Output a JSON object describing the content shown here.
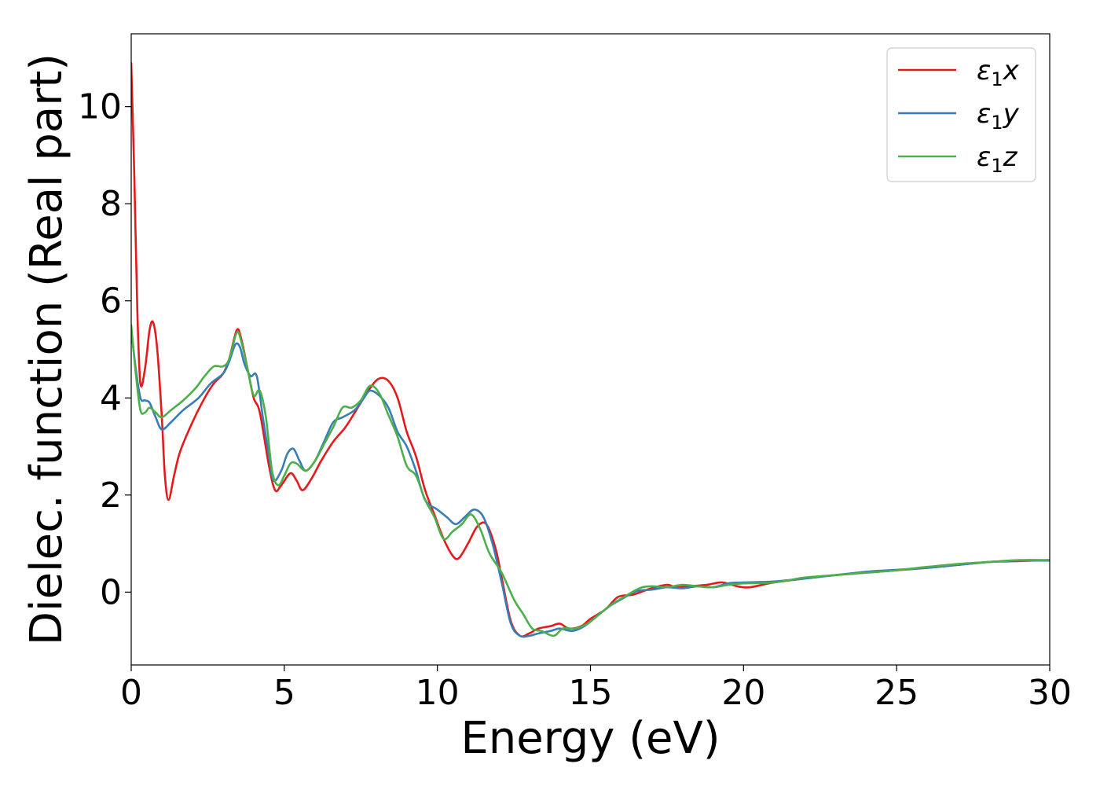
{
  "chart_data": {
    "type": "line",
    "title": "",
    "xlabel": "Energy (eV)",
    "ylabel": "Dielec. function (Real part)",
    "xlim": [
      0,
      30
    ],
    "ylim": [
      -1.5,
      11.5
    ],
    "xticks": [
      0,
      5,
      10,
      15,
      20,
      25,
      30
    ],
    "xtick_labels": [
      "0",
      "5",
      "10",
      "15",
      "20",
      "25",
      "30"
    ],
    "yticks": [
      0,
      2,
      4,
      6,
      8,
      10
    ],
    "ytick_labels": [
      "0",
      "2",
      "4",
      "6",
      "8",
      "10"
    ],
    "grid": false,
    "legend_position": "top-right",
    "series": [
      {
        "name": "ε1x",
        "legend_base": "ε",
        "legend_sub": "1",
        "legend_var": "x",
        "color": "#e41a1c",
        "points": [
          [
            0.0,
            10.9
          ],
          [
            0.1,
            8.6
          ],
          [
            0.2,
            5.8
          ],
          [
            0.3,
            4.3
          ],
          [
            0.45,
            4.6
          ],
          [
            0.6,
            5.4
          ],
          [
            0.72,
            5.55
          ],
          [
            0.85,
            5.0
          ],
          [
            1.0,
            3.6
          ],
          [
            1.1,
            2.4
          ],
          [
            1.22,
            1.9
          ],
          [
            1.4,
            2.4
          ],
          [
            1.6,
            2.9
          ],
          [
            2.0,
            3.5
          ],
          [
            2.4,
            4.0
          ],
          [
            2.7,
            4.3
          ],
          [
            3.0,
            4.5
          ],
          [
            3.2,
            4.8
          ],
          [
            3.45,
            5.4
          ],
          [
            3.6,
            5.2
          ],
          [
            3.8,
            4.6
          ],
          [
            4.0,
            4.0
          ],
          [
            4.2,
            3.7
          ],
          [
            4.5,
            2.6
          ],
          [
            4.7,
            2.1
          ],
          [
            4.9,
            2.2
          ],
          [
            5.2,
            2.45
          ],
          [
            5.4,
            2.3
          ],
          [
            5.6,
            2.1
          ],
          [
            5.9,
            2.35
          ],
          [
            6.2,
            2.7
          ],
          [
            6.6,
            3.1
          ],
          [
            7.0,
            3.4
          ],
          [
            7.4,
            3.8
          ],
          [
            7.8,
            4.2
          ],
          [
            8.1,
            4.4
          ],
          [
            8.4,
            4.35
          ],
          [
            8.7,
            4.0
          ],
          [
            9.0,
            3.3
          ],
          [
            9.3,
            2.8
          ],
          [
            9.6,
            2.1
          ],
          [
            9.9,
            1.6
          ],
          [
            10.2,
            1.1
          ],
          [
            10.5,
            0.75
          ],
          [
            10.7,
            0.7
          ],
          [
            11.0,
            1.0
          ],
          [
            11.3,
            1.35
          ],
          [
            11.6,
            1.4
          ],
          [
            11.9,
            0.9
          ],
          [
            12.1,
            0.3
          ],
          [
            12.4,
            -0.6
          ],
          [
            12.7,
            -0.9
          ],
          [
            13.0,
            -0.85
          ],
          [
            13.3,
            -0.75
          ],
          [
            13.7,
            -0.7
          ],
          [
            14.0,
            -0.65
          ],
          [
            14.3,
            -0.75
          ],
          [
            14.7,
            -0.7
          ],
          [
            15.0,
            -0.55
          ],
          [
            15.5,
            -0.35
          ],
          [
            15.9,
            -0.1
          ],
          [
            16.4,
            -0.05
          ],
          [
            17.0,
            0.08
          ],
          [
            17.5,
            0.15
          ],
          [
            17.8,
            0.1
          ],
          [
            18.2,
            0.12
          ],
          [
            18.8,
            0.15
          ],
          [
            19.3,
            0.2
          ],
          [
            19.8,
            0.12
          ],
          [
            20.2,
            0.1
          ],
          [
            21.0,
            0.2
          ],
          [
            22.0,
            0.28
          ],
          [
            23.0,
            0.35
          ],
          [
            24.0,
            0.4
          ],
          [
            25.0,
            0.45
          ],
          [
            26.0,
            0.5
          ],
          [
            27.0,
            0.56
          ],
          [
            28.0,
            0.62
          ],
          [
            29.0,
            0.64
          ],
          [
            30.0,
            0.66
          ]
        ]
      },
      {
        "name": "ε1y",
        "legend_base": "ε",
        "legend_sub": "1",
        "legend_var": "y",
        "color": "#377eb8",
        "points": [
          [
            0.0,
            5.4
          ],
          [
            0.15,
            4.6
          ],
          [
            0.3,
            4.0
          ],
          [
            0.45,
            3.95
          ],
          [
            0.6,
            3.9
          ],
          [
            0.8,
            3.6
          ],
          [
            1.0,
            3.35
          ],
          [
            1.3,
            3.5
          ],
          [
            1.7,
            3.75
          ],
          [
            2.2,
            4.0
          ],
          [
            2.6,
            4.3
          ],
          [
            3.0,
            4.5
          ],
          [
            3.2,
            4.75
          ],
          [
            3.4,
            5.1
          ],
          [
            3.55,
            5.05
          ],
          [
            3.7,
            4.7
          ],
          [
            3.9,
            4.45
          ],
          [
            4.1,
            4.45
          ],
          [
            4.3,
            3.6
          ],
          [
            4.5,
            2.8
          ],
          [
            4.65,
            2.3
          ],
          [
            4.9,
            2.5
          ],
          [
            5.1,
            2.85
          ],
          [
            5.3,
            2.95
          ],
          [
            5.5,
            2.7
          ],
          [
            5.7,
            2.5
          ],
          [
            6.0,
            2.7
          ],
          [
            6.3,
            3.1
          ],
          [
            6.6,
            3.5
          ],
          [
            6.9,
            3.6
          ],
          [
            7.3,
            3.75
          ],
          [
            7.6,
            4.0
          ],
          [
            7.8,
            4.15
          ],
          [
            8.1,
            4.05
          ],
          [
            8.4,
            3.8
          ],
          [
            8.7,
            3.3
          ],
          [
            9.0,
            3.0
          ],
          [
            9.3,
            2.5
          ],
          [
            9.6,
            1.9
          ],
          [
            10.0,
            1.7
          ],
          [
            10.3,
            1.55
          ],
          [
            10.6,
            1.4
          ],
          [
            10.9,
            1.55
          ],
          [
            11.2,
            1.7
          ],
          [
            11.5,
            1.55
          ],
          [
            11.8,
            1.0
          ],
          [
            12.1,
            0.2
          ],
          [
            12.4,
            -0.65
          ],
          [
            12.7,
            -0.9
          ],
          [
            13.0,
            -0.9
          ],
          [
            13.3,
            -0.85
          ],
          [
            13.7,
            -0.8
          ],
          [
            14.0,
            -0.75
          ],
          [
            14.4,
            -0.8
          ],
          [
            14.8,
            -0.7
          ],
          [
            15.2,
            -0.5
          ],
          [
            15.6,
            -0.3
          ],
          [
            16.0,
            -0.15
          ],
          [
            16.5,
            0.02
          ],
          [
            17.0,
            0.05
          ],
          [
            17.5,
            0.1
          ],
          [
            18.0,
            0.08
          ],
          [
            18.5,
            0.12
          ],
          [
            19.0,
            0.1
          ],
          [
            19.5,
            0.18
          ],
          [
            20.0,
            0.2
          ],
          [
            21.0,
            0.22
          ],
          [
            22.0,
            0.28
          ],
          [
            23.0,
            0.35
          ],
          [
            24.0,
            0.42
          ],
          [
            25.0,
            0.46
          ],
          [
            26.0,
            0.5
          ],
          [
            27.0,
            0.56
          ],
          [
            28.0,
            0.62
          ],
          [
            29.0,
            0.65
          ],
          [
            30.0,
            0.65
          ]
        ]
      },
      {
        "name": "ε1z",
        "legend_base": "ε",
        "legend_sub": "1",
        "legend_var": "z",
        "color": "#4daf4a",
        "points": [
          [
            0.0,
            5.5
          ],
          [
            0.15,
            4.5
          ],
          [
            0.3,
            3.75
          ],
          [
            0.45,
            3.7
          ],
          [
            0.6,
            3.8
          ],
          [
            0.8,
            3.7
          ],
          [
            1.0,
            3.6
          ],
          [
            1.3,
            3.75
          ],
          [
            1.7,
            3.95
          ],
          [
            2.1,
            4.2
          ],
          [
            2.4,
            4.45
          ],
          [
            2.7,
            4.65
          ],
          [
            3.0,
            4.65
          ],
          [
            3.2,
            4.8
          ],
          [
            3.45,
            5.35
          ],
          [
            3.6,
            5.15
          ],
          [
            3.8,
            4.6
          ],
          [
            4.0,
            4.05
          ],
          [
            4.2,
            4.15
          ],
          [
            4.4,
            3.6
          ],
          [
            4.6,
            2.5
          ],
          [
            4.8,
            2.2
          ],
          [
            5.0,
            2.4
          ],
          [
            5.2,
            2.65
          ],
          [
            5.4,
            2.65
          ],
          [
            5.7,
            2.5
          ],
          [
            6.0,
            2.7
          ],
          [
            6.3,
            3.05
          ],
          [
            6.6,
            3.4
          ],
          [
            6.9,
            3.8
          ],
          [
            7.2,
            3.8
          ],
          [
            7.5,
            3.95
          ],
          [
            7.8,
            4.25
          ],
          [
            8.1,
            4.1
          ],
          [
            8.4,
            3.65
          ],
          [
            8.7,
            3.2
          ],
          [
            9.0,
            2.6
          ],
          [
            9.3,
            2.4
          ],
          [
            9.6,
            1.9
          ],
          [
            9.9,
            1.55
          ],
          [
            10.2,
            1.1
          ],
          [
            10.5,
            1.25
          ],
          [
            10.8,
            1.4
          ],
          [
            11.1,
            1.6
          ],
          [
            11.4,
            1.3
          ],
          [
            11.7,
            0.8
          ],
          [
            12.1,
            0.4
          ],
          [
            12.5,
            -0.15
          ],
          [
            12.8,
            -0.45
          ],
          [
            13.1,
            -0.75
          ],
          [
            13.4,
            -0.8
          ],
          [
            13.8,
            -0.9
          ],
          [
            14.1,
            -0.75
          ],
          [
            14.5,
            -0.75
          ],
          [
            14.9,
            -0.65
          ],
          [
            15.3,
            -0.45
          ],
          [
            15.7,
            -0.25
          ],
          [
            16.1,
            -0.1
          ],
          [
            16.6,
            0.08
          ],
          [
            17.0,
            0.12
          ],
          [
            17.5,
            0.1
          ],
          [
            18.0,
            0.15
          ],
          [
            18.5,
            0.12
          ],
          [
            19.0,
            0.1
          ],
          [
            19.5,
            0.15
          ],
          [
            20.0,
            0.18
          ],
          [
            21.0,
            0.2
          ],
          [
            22.0,
            0.3
          ],
          [
            23.0,
            0.35
          ],
          [
            24.0,
            0.4
          ],
          [
            25.0,
            0.45
          ],
          [
            26.0,
            0.52
          ],
          [
            27.0,
            0.58
          ],
          [
            28.0,
            0.62
          ],
          [
            29.0,
            0.66
          ],
          [
            30.0,
            0.66
          ]
        ]
      }
    ]
  }
}
